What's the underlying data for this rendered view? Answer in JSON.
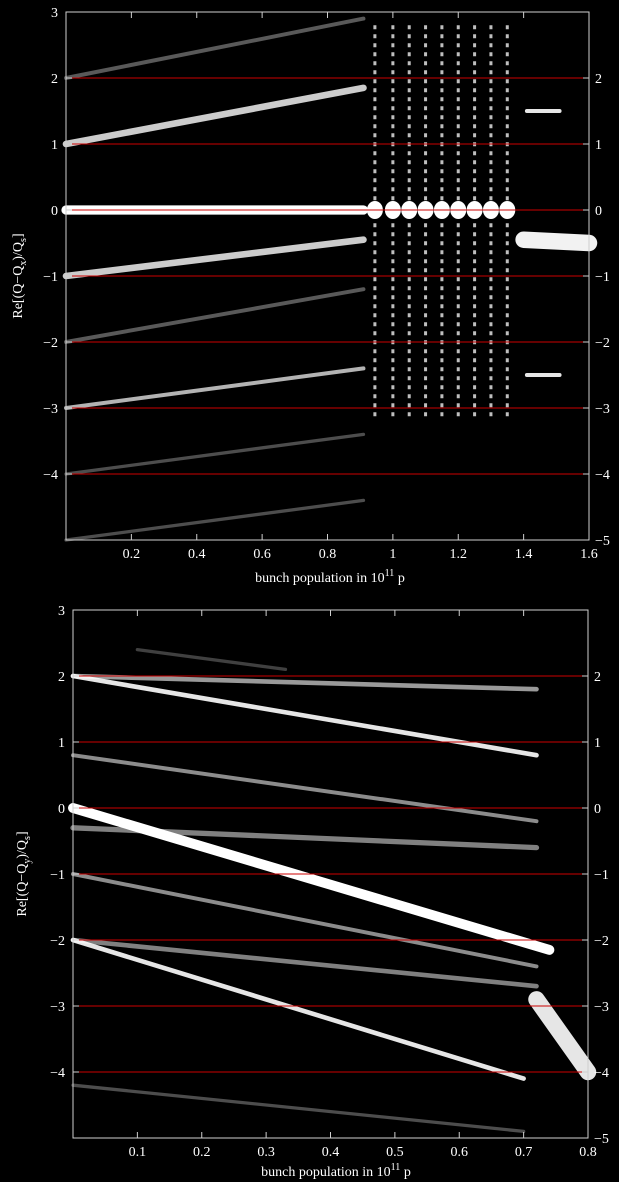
{
  "chart_data": [
    {
      "type": "heatmap",
      "title": "",
      "xlabel": "bunch population in 10",
      "xlabel_sup": "11",
      "xlabel_suffix": " p",
      "ylabel": "Re[(Q−Q",
      "ylabel_sub1": "x",
      "ylabel_mid": ")/Q",
      "ylabel_sub2": "s",
      "ylabel_end": "]",
      "xlim": [
        0,
        1.6
      ],
      "ylim": [
        -5,
        3
      ],
      "x_ticks": [
        0.2,
        0.4,
        0.6,
        0.8,
        1.0,
        1.2,
        1.4,
        1.6
      ],
      "x_tick_labels": [
        "0.2",
        "0.4",
        "0.6",
        "0.8",
        "1",
        "1.2",
        "1.4",
        "1.6"
      ],
      "y_ticks_left": [
        3,
        2,
        1,
        0,
        -1,
        -2,
        -3,
        -4
      ],
      "y_tick_labels_left": [
        "3",
        "2",
        "1",
        "0",
        "−1",
        "−2",
        "−3",
        "−4"
      ],
      "y_ticks_right": [
        2,
        1,
        0,
        -1,
        -2,
        -3,
        -4,
        -5
      ],
      "y_tick_labels_right": [
        "2",
        "1",
        "0",
        "−1",
        "−2",
        "−3",
        "−4",
        "−5"
      ],
      "reference_lines_y": [
        2,
        1,
        0,
        -1,
        -2,
        -3,
        -4
      ],
      "reference_line_color": "#cc0000",
      "background_color": "#000000",
      "trace_color": "#ffffff",
      "grid": false,
      "mode_lines": [
        {
          "x": [
            0,
            0.91
          ],
          "y": [
            0,
            0
          ],
          "intensity": 1.0,
          "width": 0.14
        },
        {
          "x": [
            0,
            0.91
          ],
          "y": [
            1,
            1.85
          ],
          "intensity": 0.8,
          "width": 0.1
        },
        {
          "x": [
            0,
            0.91
          ],
          "y": [
            -1,
            -0.45
          ],
          "intensity": 0.8,
          "width": 0.1
        },
        {
          "x": [
            0,
            0.91
          ],
          "y": [
            -3,
            -2.4
          ],
          "intensity": 0.7,
          "width": 0.06
        },
        {
          "x": [
            0,
            0.91
          ],
          "y": [
            2,
            2.9
          ],
          "intensity": 0.35,
          "width": 0.06
        },
        {
          "x": [
            0,
            0.91
          ],
          "y": [
            -2,
            -1.2
          ],
          "intensity": 0.35,
          "width": 0.06
        },
        {
          "x": [
            0,
            0.91
          ],
          "y": [
            -4,
            -3.4
          ],
          "intensity": 0.3,
          "width": 0.05
        },
        {
          "x": [
            0,
            0.91
          ],
          "y": [
            -5,
            -4.4
          ],
          "intensity": 0.3,
          "width": 0.05
        },
        {
          "x": [
            1.41,
            1.51
          ],
          "y": [
            1.5,
            1.5
          ],
          "intensity": 0.9,
          "width": 0.06
        },
        {
          "x": [
            1.41,
            1.51
          ],
          "y": [
            -2.5,
            -2.5
          ],
          "intensity": 0.9,
          "width": 0.06
        },
        {
          "x": [
            1.4,
            1.6
          ],
          "y": [
            -0.45,
            -0.5
          ],
          "intensity": 0.95,
          "width": 0.25
        }
      ],
      "instability_columns_x": [
        0.945,
        1.0,
        1.05,
        1.1,
        1.15,
        1.2,
        1.25,
        1.3,
        1.35
      ],
      "instability_columns_y_range": [
        -3.2,
        2.8
      ]
    },
    {
      "type": "heatmap",
      "title": "",
      "xlabel": "bunch population in 10",
      "xlabel_sup": "11",
      "xlabel_suffix": " p",
      "ylabel": "Re[(Q−Q",
      "ylabel_sub1": "y",
      "ylabel_mid": ")/Q",
      "ylabel_sub2": "s",
      "ylabel_end": "]",
      "xlim": [
        0,
        0.8
      ],
      "ylim": [
        -5,
        3
      ],
      "x_ticks": [
        0.1,
        0.2,
        0.3,
        0.4,
        0.5,
        0.6,
        0.7,
        0.8
      ],
      "x_tick_labels": [
        "0.1",
        "0.2",
        "0.3",
        "0.4",
        "0.5",
        "0.6",
        "0.7",
        "0.8"
      ],
      "y_ticks_left": [
        3,
        2,
        1,
        0,
        -1,
        -2,
        -3,
        -4
      ],
      "y_tick_labels_left": [
        "3",
        "2",
        "1",
        "0",
        "−1",
        "−2",
        "−3",
        "−4"
      ],
      "y_ticks_right": [
        2,
        1,
        0,
        -1,
        -2,
        -3,
        -4,
        -5
      ],
      "y_tick_labels_right": [
        "2",
        "1",
        "0",
        "−1",
        "−2",
        "−3",
        "−4",
        "−5"
      ],
      "reference_lines_y": [
        2,
        1,
        0,
        -1,
        -2,
        -3,
        -4
      ],
      "reference_line_color": "#cc0000",
      "background_color": "#000000",
      "trace_color": "#ffffff",
      "grid": false,
      "mode_lines": [
        {
          "x": [
            0,
            0.74
          ],
          "y": [
            0,
            -2.15
          ],
          "intensity": 1.0,
          "width": 0.15
        },
        {
          "x": [
            0,
            0.72
          ],
          "y": [
            2,
            0.8
          ],
          "intensity": 0.9,
          "width": 0.07
        },
        {
          "x": [
            0,
            0.7
          ],
          "y": [
            -2,
            -4.1
          ],
          "intensity": 0.9,
          "width": 0.07
        },
        {
          "x": [
            0,
            0.72
          ],
          "y": [
            2,
            1.8
          ],
          "intensity": 0.6,
          "width": 0.07
        },
        {
          "x": [
            0,
            0.72
          ],
          "y": [
            0.8,
            -0.2
          ],
          "intensity": 0.55,
          "width": 0.06
        },
        {
          "x": [
            0,
            0.72
          ],
          "y": [
            -0.3,
            -0.6
          ],
          "intensity": 0.5,
          "width": 0.08
        },
        {
          "x": [
            0,
            0.72
          ],
          "y": [
            -1.0,
            -2.4
          ],
          "intensity": 0.55,
          "width": 0.06
        },
        {
          "x": [
            0,
            0.72
          ],
          "y": [
            -2.0,
            -2.7
          ],
          "intensity": 0.5,
          "width": 0.07
        },
        {
          "x": [
            0.72,
            0.8
          ],
          "y": [
            -2.9,
            -4.0
          ],
          "intensity": 0.9,
          "width": 0.25
        },
        {
          "x": [
            0.1,
            0.33
          ],
          "y": [
            2.4,
            2.1
          ],
          "intensity": 0.25,
          "width": 0.05
        },
        {
          "x": [
            0,
            0.7
          ],
          "y": [
            -4.2,
            -4.9
          ],
          "intensity": 0.3,
          "width": 0.05
        }
      ]
    }
  ]
}
